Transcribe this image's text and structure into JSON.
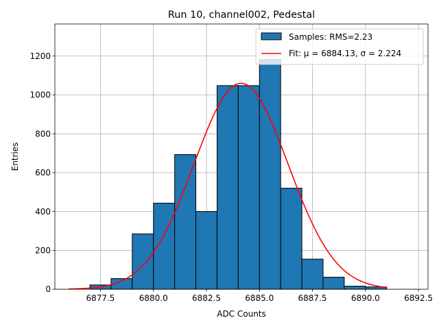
{
  "chart_data": {
    "type": "bar",
    "title": "Run 10, channel002, Pedestal",
    "xlabel": "ADC Counts",
    "ylabel": "Entries",
    "xlim": [
      6875.35,
      6892.95
    ],
    "ylim": [
      0,
      1365
    ],
    "grid": true,
    "legend_position": "top-right",
    "xticks": [
      6877.5,
      6880.0,
      6882.5,
      6885.0,
      6887.5,
      6890.0,
      6892.5
    ],
    "xtick_labels": [
      "6877.5",
      "6880.0",
      "6882.5",
      "6885.0",
      "6887.5",
      "6890.0",
      "6892.5"
    ],
    "yticks": [
      0,
      200,
      400,
      600,
      800,
      1000,
      1200
    ],
    "ytick_labels": [
      "0",
      "200",
      "400",
      "600",
      "800",
      "1000",
      "1200"
    ],
    "histogram": {
      "name": "Samples",
      "legend_label": "Samples: RMS=2.23",
      "color": "#1f77b4",
      "edge_color": "#000000",
      "bin_edges": [
        6877,
        6878,
        6879,
        6880,
        6881,
        6882,
        6883,
        6884,
        6885,
        6886,
        6887,
        6888,
        6889,
        6890,
        6891
      ],
      "counts": [
        22,
        55,
        285,
        443,
        693,
        400,
        1048,
        1048,
        1182,
        520,
        155,
        62,
        16,
        12
      ]
    },
    "fit": {
      "name": "Fit",
      "legend_label": "Fit: μ = 6884.13, σ = 2.224",
      "color": "#ff0000",
      "mu": 6884.13,
      "sigma": 2.224,
      "amplitude": 1060,
      "x_range": [
        6876,
        6891
      ]
    }
  }
}
